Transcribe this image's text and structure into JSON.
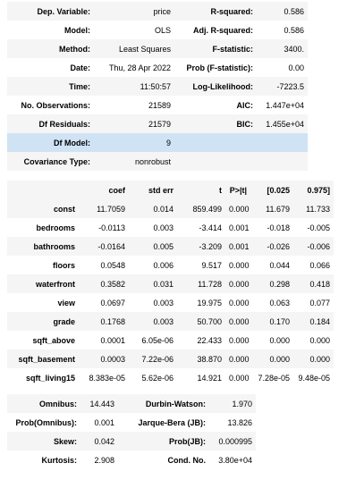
{
  "summary": {
    "rows": [
      {
        "l1": "Dep. Variable:",
        "v1": "price",
        "l2": "R-squared:",
        "v2": "0.586"
      },
      {
        "l1": "Model:",
        "v1": "OLS",
        "l2": "Adj. R-squared:",
        "v2": "0.586"
      },
      {
        "l1": "Method:",
        "v1": "Least Squares",
        "l2": "F-statistic:",
        "v2": "3400."
      },
      {
        "l1": "Date:",
        "v1": "Thu, 28 Apr 2022",
        "l2": "Prob (F-statistic):",
        "v2": "0.00"
      },
      {
        "l1": "Time:",
        "v1": "11:50:57",
        "l2": "Log-Likelihood:",
        "v2": "-7223.5"
      },
      {
        "l1": "No. Observations:",
        "v1": "21589",
        "l2": "AIC:",
        "v2": "1.447e+04"
      },
      {
        "l1": "Df Residuals:",
        "v1": "21579",
        "l2": "BIC:",
        "v2": "1.455e+04"
      },
      {
        "l1": "Df Model:",
        "v1": "9",
        "l2": "",
        "v2": ""
      },
      {
        "l1": "Covariance Type:",
        "v1": "nonrobust",
        "l2": "",
        "v2": ""
      }
    ]
  },
  "coef": {
    "headers": [
      "",
      "coef",
      "std err",
      "t",
      "P>|t|",
      "[0.025",
      "0.975]"
    ],
    "rows": [
      [
        "const",
        "11.7059",
        "0.014",
        "859.499",
        "0.000",
        "11.679",
        "11.733"
      ],
      [
        "bedrooms",
        "-0.0113",
        "0.003",
        "-3.414",
        "0.001",
        "-0.018",
        "-0.005"
      ],
      [
        "bathrooms",
        "-0.0164",
        "0.005",
        "-3.209",
        "0.001",
        "-0.026",
        "-0.006"
      ],
      [
        "floors",
        "0.0548",
        "0.006",
        "9.517",
        "0.000",
        "0.044",
        "0.066"
      ],
      [
        "waterfront",
        "0.3582",
        "0.031",
        "11.728",
        "0.000",
        "0.298",
        "0.418"
      ],
      [
        "view",
        "0.0697",
        "0.003",
        "19.975",
        "0.000",
        "0.063",
        "0.077"
      ],
      [
        "grade",
        "0.1768",
        "0.003",
        "50.700",
        "0.000",
        "0.170",
        "0.184"
      ],
      [
        "sqft_above",
        "0.0001",
        "6.05e-06",
        "22.433",
        "0.000",
        "0.000",
        "0.000"
      ],
      [
        "sqft_basement",
        "0.0003",
        "7.22e-06",
        "38.870",
        "0.000",
        "0.000",
        "0.000"
      ],
      [
        "sqft_living15",
        "8.383e-05",
        "5.62e-06",
        "14.921",
        "0.000",
        "7.28e-05",
        "9.48e-05"
      ]
    ]
  },
  "diag": {
    "rows": [
      {
        "l1": "Omnibus:",
        "v1": "14.443",
        "l2": "Durbin-Watson:",
        "v2": "1.970"
      },
      {
        "l1": "Prob(Omnibus):",
        "v1": "0.001",
        "l2": "Jarque-Bera (JB):",
        "v2": "13.826"
      },
      {
        "l1": "Skew:",
        "v1": "0.042",
        "l2": "Prob(JB):",
        "v2": "0.000995"
      },
      {
        "l1": "Kurtosis:",
        "v1": "2.908",
        "l2": "Cond. No.",
        "v2": "3.80e+04"
      }
    ]
  }
}
